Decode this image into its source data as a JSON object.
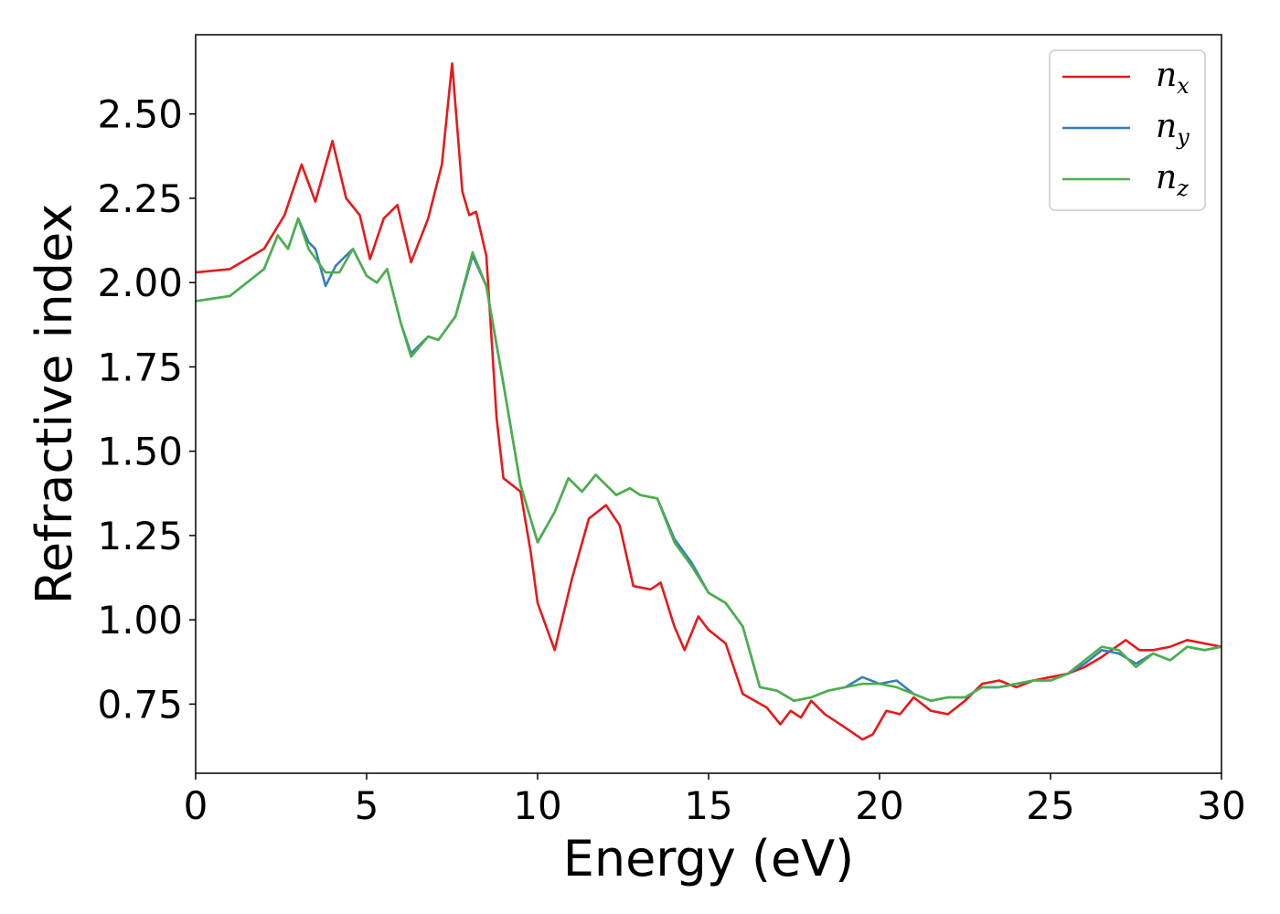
{
  "chart_data": {
    "type": "line",
    "xlabel": "Energy (eV)",
    "ylabel": "Refractive index",
    "xlim": [
      0,
      30
    ],
    "ylim": [
      0.545,
      2.735
    ],
    "x_ticks": [
      0,
      5,
      10,
      15,
      20,
      25,
      30
    ],
    "y_ticks": [
      0.75,
      1.0,
      1.25,
      1.5,
      1.75,
      2.0,
      2.25,
      2.5
    ],
    "grid": false,
    "legend_position": "top-right",
    "series": [
      {
        "name": "n",
        "subscript": "x",
        "color": "#e41a1c",
        "points": [
          [
            0,
            2.03
          ],
          [
            1,
            2.04
          ],
          [
            2,
            2.1
          ],
          [
            2.6,
            2.2
          ],
          [
            3.1,
            2.35
          ],
          [
            3.5,
            2.24
          ],
          [
            4.0,
            2.42
          ],
          [
            4.4,
            2.25
          ],
          [
            4.8,
            2.2
          ],
          [
            5.1,
            2.07
          ],
          [
            5.5,
            2.19
          ],
          [
            5.9,
            2.23
          ],
          [
            6.3,
            2.06
          ],
          [
            6.8,
            2.19
          ],
          [
            7.2,
            2.35
          ],
          [
            7.5,
            2.65
          ],
          [
            7.8,
            2.27
          ],
          [
            8.0,
            2.2
          ],
          [
            8.2,
            2.21
          ],
          [
            8.5,
            2.08
          ],
          [
            8.8,
            1.6
          ],
          [
            9.0,
            1.42
          ],
          [
            9.5,
            1.38
          ],
          [
            9.8,
            1.2
          ],
          [
            10.0,
            1.05
          ],
          [
            10.5,
            0.91
          ],
          [
            11.0,
            1.12
          ],
          [
            11.5,
            1.3
          ],
          [
            12.0,
            1.34
          ],
          [
            12.4,
            1.28
          ],
          [
            12.8,
            1.1
          ],
          [
            13.3,
            1.09
          ],
          [
            13.6,
            1.11
          ],
          [
            14.0,
            0.98
          ],
          [
            14.3,
            0.91
          ],
          [
            14.7,
            1.01
          ],
          [
            15.0,
            0.97
          ],
          [
            15.5,
            0.93
          ],
          [
            16.0,
            0.78
          ],
          [
            16.7,
            0.74
          ],
          [
            17.1,
            0.69
          ],
          [
            17.4,
            0.73
          ],
          [
            17.7,
            0.71
          ],
          [
            18.0,
            0.76
          ],
          [
            18.4,
            0.72
          ],
          [
            19.0,
            0.68
          ],
          [
            19.5,
            0.645
          ],
          [
            19.8,
            0.66
          ],
          [
            20.2,
            0.73
          ],
          [
            20.6,
            0.72
          ],
          [
            21.0,
            0.77
          ],
          [
            21.5,
            0.73
          ],
          [
            22.0,
            0.72
          ],
          [
            22.5,
            0.76
          ],
          [
            23.0,
            0.81
          ],
          [
            23.5,
            0.82
          ],
          [
            24.0,
            0.8
          ],
          [
            24.5,
            0.82
          ],
          [
            25.0,
            0.83
          ],
          [
            25.5,
            0.84
          ],
          [
            26.0,
            0.86
          ],
          [
            26.5,
            0.89
          ],
          [
            27.2,
            0.94
          ],
          [
            27.6,
            0.91
          ],
          [
            28.0,
            0.91
          ],
          [
            28.5,
            0.92
          ],
          [
            29.0,
            0.94
          ],
          [
            29.5,
            0.93
          ],
          [
            30.0,
            0.92
          ]
        ]
      },
      {
        "name": "n",
        "subscript": "y",
        "color": "#377eb8",
        "points": [
          [
            0,
            1.945
          ],
          [
            1,
            1.96
          ],
          [
            2,
            2.04
          ],
          [
            2.4,
            2.14
          ],
          [
            2.7,
            2.1
          ],
          [
            3.0,
            2.19
          ],
          [
            3.3,
            2.12
          ],
          [
            3.5,
            2.1
          ],
          [
            3.8,
            1.99
          ],
          [
            4.1,
            2.05
          ],
          [
            4.6,
            2.1
          ],
          [
            5.0,
            2.02
          ],
          [
            5.3,
            2.0
          ],
          [
            5.6,
            2.04
          ],
          [
            6.0,
            1.88
          ],
          [
            6.3,
            1.79
          ],
          [
            6.8,
            1.84
          ],
          [
            7.1,
            1.83
          ],
          [
            7.6,
            1.9
          ],
          [
            8.1,
            2.08
          ],
          [
            8.5,
            1.99
          ],
          [
            9.0,
            1.7
          ],
          [
            9.5,
            1.4
          ],
          [
            10.0,
            1.23
          ],
          [
            10.5,
            1.32
          ],
          [
            10.9,
            1.42
          ],
          [
            11.3,
            1.38
          ],
          [
            11.7,
            1.43
          ],
          [
            12.0,
            1.4
          ],
          [
            12.3,
            1.37
          ],
          [
            12.7,
            1.39
          ],
          [
            13.0,
            1.37
          ],
          [
            13.5,
            1.36
          ],
          [
            14.0,
            1.24
          ],
          [
            14.5,
            1.17
          ],
          [
            15.0,
            1.08
          ],
          [
            15.5,
            1.05
          ],
          [
            16.0,
            0.98
          ],
          [
            16.5,
            0.8
          ],
          [
            17.0,
            0.79
          ],
          [
            17.5,
            0.76
          ],
          [
            18.0,
            0.77
          ],
          [
            18.5,
            0.79
          ],
          [
            19.0,
            0.8
          ],
          [
            19.5,
            0.83
          ],
          [
            20.0,
            0.81
          ],
          [
            20.5,
            0.82
          ],
          [
            21.0,
            0.78
          ],
          [
            21.5,
            0.76
          ],
          [
            22.0,
            0.77
          ],
          [
            22.5,
            0.77
          ],
          [
            23.0,
            0.8
          ],
          [
            23.5,
            0.8
          ],
          [
            24.0,
            0.81
          ],
          [
            24.5,
            0.82
          ],
          [
            25.0,
            0.82
          ],
          [
            25.5,
            0.84
          ],
          [
            26.0,
            0.87
          ],
          [
            26.5,
            0.91
          ],
          [
            27.0,
            0.9
          ],
          [
            27.5,
            0.87
          ],
          [
            28.0,
            0.9
          ],
          [
            28.5,
            0.88
          ],
          [
            29.0,
            0.92
          ],
          [
            29.5,
            0.91
          ],
          [
            30.0,
            0.92
          ]
        ]
      },
      {
        "name": "n",
        "subscript": "z",
        "color": "#4daf4a",
        "points": [
          [
            0,
            1.945
          ],
          [
            1,
            1.96
          ],
          [
            2,
            2.04
          ],
          [
            2.4,
            2.14
          ],
          [
            2.7,
            2.1
          ],
          [
            3.0,
            2.19
          ],
          [
            3.3,
            2.1
          ],
          [
            3.8,
            2.03
          ],
          [
            4.2,
            2.03
          ],
          [
            4.6,
            2.1
          ],
          [
            5.0,
            2.02
          ],
          [
            5.3,
            2.0
          ],
          [
            5.6,
            2.04
          ],
          [
            6.0,
            1.88
          ],
          [
            6.3,
            1.78
          ],
          [
            6.8,
            1.84
          ],
          [
            7.1,
            1.83
          ],
          [
            7.6,
            1.9
          ],
          [
            8.1,
            2.09
          ],
          [
            8.5,
            1.99
          ],
          [
            9.0,
            1.7
          ],
          [
            9.5,
            1.4
          ],
          [
            10.0,
            1.23
          ],
          [
            10.5,
            1.32
          ],
          [
            10.9,
            1.42
          ],
          [
            11.3,
            1.38
          ],
          [
            11.7,
            1.43
          ],
          [
            12.0,
            1.4
          ],
          [
            12.3,
            1.37
          ],
          [
            12.7,
            1.39
          ],
          [
            13.0,
            1.37
          ],
          [
            13.5,
            1.36
          ],
          [
            14.0,
            1.23
          ],
          [
            14.5,
            1.16
          ],
          [
            15.0,
            1.08
          ],
          [
            15.5,
            1.05
          ],
          [
            16.0,
            0.98
          ],
          [
            16.5,
            0.8
          ],
          [
            17.0,
            0.79
          ],
          [
            17.5,
            0.76
          ],
          [
            18.0,
            0.77
          ],
          [
            18.5,
            0.79
          ],
          [
            19.0,
            0.8
          ],
          [
            19.5,
            0.81
          ],
          [
            20.0,
            0.81
          ],
          [
            20.5,
            0.8
          ],
          [
            21.0,
            0.78
          ],
          [
            21.5,
            0.76
          ],
          [
            22.0,
            0.77
          ],
          [
            22.5,
            0.77
          ],
          [
            23.0,
            0.8
          ],
          [
            23.5,
            0.8
          ],
          [
            24.0,
            0.81
          ],
          [
            24.5,
            0.82
          ],
          [
            25.0,
            0.82
          ],
          [
            25.5,
            0.84
          ],
          [
            26.0,
            0.88
          ],
          [
            26.5,
            0.92
          ],
          [
            27.0,
            0.91
          ],
          [
            27.5,
            0.86
          ],
          [
            28.0,
            0.9
          ],
          [
            28.5,
            0.88
          ],
          [
            29.0,
            0.92
          ],
          [
            29.5,
            0.91
          ],
          [
            30.0,
            0.92
          ]
        ]
      }
    ]
  }
}
